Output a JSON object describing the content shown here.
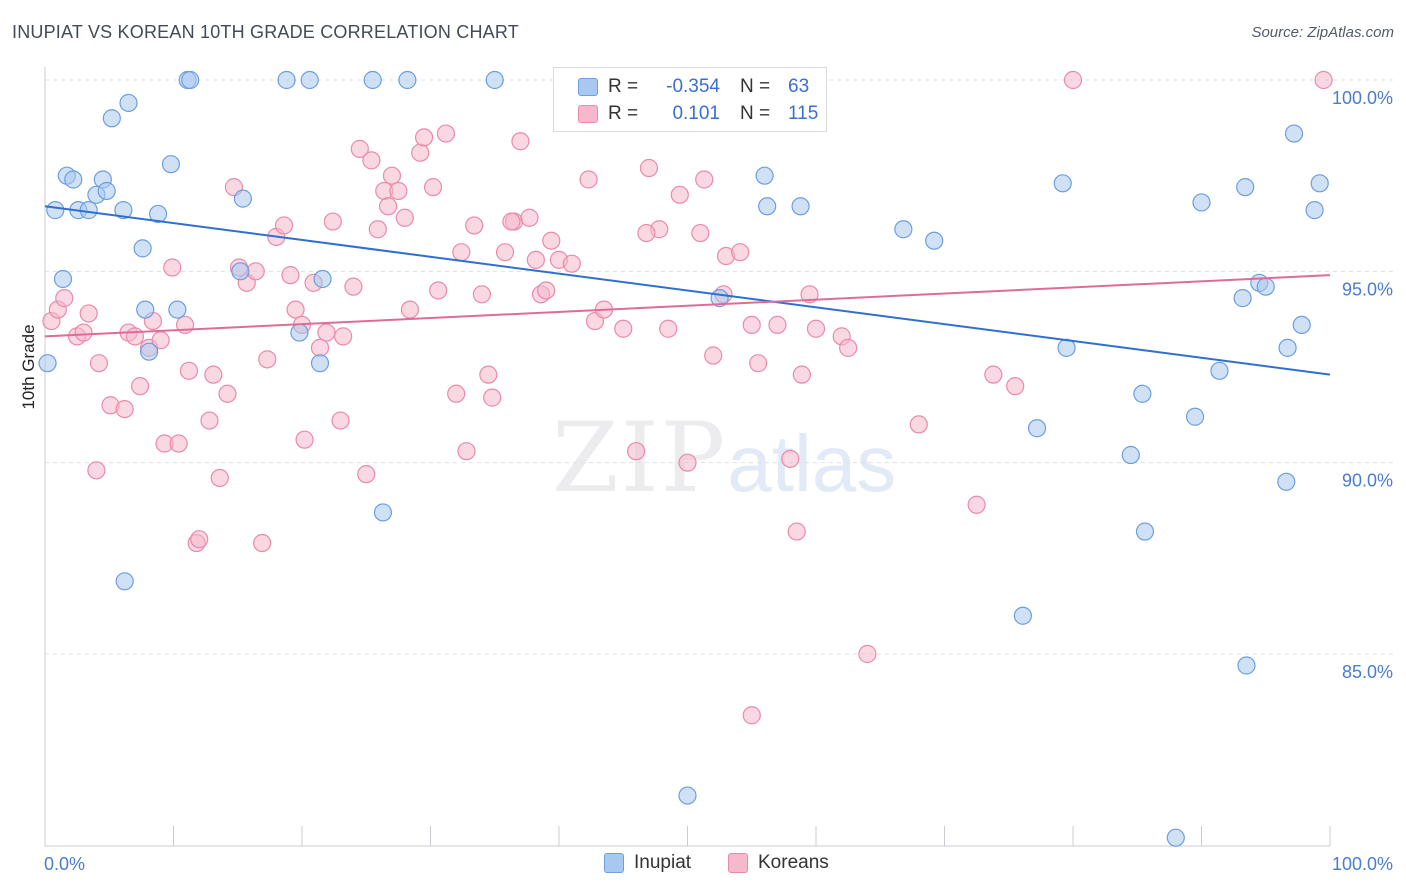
{
  "title": "INUPIAT VS KOREAN 10TH GRADE CORRELATION CHART",
  "source": "Source: ZipAtlas.com",
  "watermark": {
    "zip": "ZIP",
    "atlas": "atlas"
  },
  "legend": {
    "rows": [
      {
        "r_label": "R =",
        "r_value": "-0.354",
        "n_label": "N =",
        "n_value": "63"
      },
      {
        "r_label": "R =",
        "r_value": "0.101",
        "n_label": "N =",
        "n_value": "115"
      }
    ]
  },
  "bottom_legend": [
    "Inupiat",
    "Koreans"
  ],
  "colors": {
    "inupiat_fill": "#a9c8ef",
    "inupiat_stroke": "#6b9fe0",
    "inupiat_line": "#2f6fd0",
    "koreans_fill": "#f6b8cb",
    "koreans_stroke": "#ea8aaa",
    "koreans_line": "#e06b97",
    "tick_label": "#4a7ccf",
    "grid": "#dde0e5"
  },
  "chart_data": {
    "type": "scatter",
    "title": "INUPIAT VS KOREAN 10TH GRADE CORRELATION CHART",
    "xlabel": "",
    "ylabel": "10th Grade",
    "xlim": [
      0,
      100
    ],
    "ylim": [
      80.5,
      100.5
    ],
    "x_tick_labels": [
      "0.0%",
      "100.0%"
    ],
    "y_ticks": [
      85,
      90,
      95,
      100
    ],
    "y_tick_labels": [
      "85.0%",
      "90.0%",
      "95.0%",
      "100.0%"
    ],
    "grid": true,
    "legend_position": "top-center",
    "series": [
      {
        "name": "Inupiat",
        "r": -0.354,
        "n": 63,
        "trend": {
          "x": [
            0,
            100
          ],
          "y": [
            96.7,
            92.3
          ]
        },
        "points": [
          [
            0.8,
            96.6
          ],
          [
            1.4,
            94.8
          ],
          [
            1.7,
            97.5
          ],
          [
            2.2,
            97.4
          ],
          [
            2.6,
            96.6
          ],
          [
            3.4,
            96.6
          ],
          [
            4.0,
            97.0
          ],
          [
            4.5,
            97.4
          ],
          [
            4.8,
            97.1
          ],
          [
            5.2,
            99.0
          ],
          [
            6.1,
            96.6
          ],
          [
            6.5,
            99.4
          ],
          [
            7.6,
            95.6
          ],
          [
            7.8,
            94.0
          ],
          [
            8.1,
            92.9
          ],
          [
            8.8,
            96.5
          ],
          [
            9.8,
            97.8
          ],
          [
            10.3,
            94.0
          ],
          [
            11.1,
            100.0
          ],
          [
            11.3,
            100.0
          ],
          [
            15.4,
            96.9
          ],
          [
            18.8,
            100.0
          ],
          [
            20.6,
            100.0
          ],
          [
            25.5,
            100.0
          ],
          [
            28.2,
            100.0
          ],
          [
            35.0,
            100.0
          ],
          [
            42.0,
            100.0
          ],
          [
            15.2,
            95.0
          ],
          [
            19.8,
            93.4
          ],
          [
            21.4,
            92.6
          ],
          [
            21.6,
            94.8
          ],
          [
            26.3,
            88.7
          ],
          [
            6.2,
            86.9
          ],
          [
            52.5,
            94.3
          ],
          [
            56.0,
            97.5
          ],
          [
            56.2,
            96.7
          ],
          [
            58.8,
            96.7
          ],
          [
            66.8,
            96.1
          ],
          [
            69.2,
            95.8
          ],
          [
            76.1,
            86.0
          ],
          [
            77.2,
            90.9
          ],
          [
            79.2,
            97.3
          ],
          [
            79.5,
            93.0
          ],
          [
            84.5,
            90.2
          ],
          [
            85.4,
            91.8
          ],
          [
            85.6,
            88.2
          ],
          [
            89.5,
            91.2
          ],
          [
            90.0,
            96.8
          ],
          [
            91.4,
            92.4
          ],
          [
            93.2,
            94.3
          ],
          [
            93.4,
            97.2
          ],
          [
            93.5,
            84.7
          ],
          [
            94.5,
            94.7
          ],
          [
            95.0,
            94.6
          ],
          [
            96.6,
            89.5
          ],
          [
            96.7,
            93.0
          ],
          [
            97.2,
            98.6
          ],
          [
            97.8,
            93.6
          ],
          [
            98.8,
            96.6
          ],
          [
            99.2,
            97.3
          ],
          [
            50.0,
            81.3
          ],
          [
            88.0,
            80.2
          ],
          [
            0.2,
            92.6
          ]
        ]
      },
      {
        "name": "Koreans",
        "r": 0.101,
        "n": 115,
        "trend": {
          "x": [
            0,
            100
          ],
          "y": [
            93.3,
            94.9
          ]
        },
        "points": [
          [
            0.5,
            93.7
          ],
          [
            1.0,
            94.0
          ],
          [
            1.5,
            94.3
          ],
          [
            2.5,
            93.3
          ],
          [
            3.0,
            93.4
          ],
          [
            3.4,
            93.9
          ],
          [
            4.0,
            89.8
          ],
          [
            4.2,
            92.6
          ],
          [
            5.1,
            91.5
          ],
          [
            6.2,
            91.4
          ],
          [
            6.5,
            93.4
          ],
          [
            7.0,
            93.3
          ],
          [
            7.4,
            92.0
          ],
          [
            8.1,
            93.0
          ],
          [
            8.4,
            93.7
          ],
          [
            9.0,
            93.2
          ],
          [
            9.3,
            90.5
          ],
          [
            9.9,
            95.1
          ],
          [
            10.4,
            90.5
          ],
          [
            10.9,
            93.6
          ],
          [
            11.2,
            92.4
          ],
          [
            11.8,
            87.9
          ],
          [
            12.0,
            88.0
          ],
          [
            12.8,
            91.1
          ],
          [
            13.1,
            92.3
          ],
          [
            13.6,
            89.6
          ],
          [
            14.2,
            91.8
          ],
          [
            14.7,
            97.2
          ],
          [
            15.1,
            95.1
          ],
          [
            15.7,
            94.7
          ],
          [
            16.4,
            95.0
          ],
          [
            16.9,
            87.9
          ],
          [
            17.3,
            92.7
          ],
          [
            18.0,
            95.9
          ],
          [
            18.6,
            96.2
          ],
          [
            19.1,
            94.9
          ],
          [
            19.5,
            94.0
          ],
          [
            20.0,
            93.6
          ],
          [
            20.2,
            90.6
          ],
          [
            20.9,
            94.7
          ],
          [
            21.4,
            93.0
          ],
          [
            21.9,
            93.4
          ],
          [
            22.4,
            96.3
          ],
          [
            23.0,
            91.1
          ],
          [
            23.2,
            93.3
          ],
          [
            24.0,
            94.6
          ],
          [
            24.5,
            98.2
          ],
          [
            25.0,
            89.7
          ],
          [
            25.4,
            97.9
          ],
          [
            25.9,
            96.1
          ],
          [
            26.4,
            97.1
          ],
          [
            26.7,
            96.7
          ],
          [
            27.0,
            97.5
          ],
          [
            27.5,
            97.1
          ],
          [
            28.0,
            96.4
          ],
          [
            28.4,
            94.0
          ],
          [
            29.2,
            98.1
          ],
          [
            29.5,
            98.5
          ],
          [
            30.2,
            97.2
          ],
          [
            30.6,
            94.5
          ],
          [
            31.2,
            98.6
          ],
          [
            32.0,
            91.8
          ],
          [
            32.4,
            95.5
          ],
          [
            32.8,
            90.3
          ],
          [
            33.4,
            96.2
          ],
          [
            34.0,
            94.4
          ],
          [
            34.5,
            92.3
          ],
          [
            34.8,
            91.7
          ],
          [
            35.8,
            95.5
          ],
          [
            36.5,
            96.3
          ],
          [
            37.0,
            98.4
          ],
          [
            37.7,
            96.4
          ],
          [
            38.2,
            95.3
          ],
          [
            38.6,
            94.4
          ],
          [
            39.0,
            94.5
          ],
          [
            39.4,
            95.8
          ],
          [
            40.0,
            95.3
          ],
          [
            40.5,
            100.0
          ],
          [
            41.0,
            95.2
          ],
          [
            42.3,
            97.4
          ],
          [
            42.8,
            93.7
          ],
          [
            43.5,
            94.0
          ],
          [
            45.0,
            93.5
          ],
          [
            46.0,
            90.3
          ],
          [
            47.0,
            97.7
          ],
          [
            47.8,
            96.1
          ],
          [
            48.5,
            93.5
          ],
          [
            49.4,
            97.0
          ],
          [
            50.0,
            90.0
          ],
          [
            51.0,
            96.0
          ],
          [
            51.3,
            97.4
          ],
          [
            52.0,
            92.8
          ],
          [
            52.8,
            94.4
          ],
          [
            53.0,
            95.4
          ],
          [
            54.1,
            95.5
          ],
          [
            55.0,
            93.6
          ],
          [
            55.5,
            92.6
          ],
          [
            57.0,
            93.6
          ],
          [
            58.0,
            90.1
          ],
          [
            58.5,
            88.2
          ],
          [
            58.9,
            92.3
          ],
          [
            59.5,
            94.4
          ],
          [
            60.0,
            93.5
          ],
          [
            62.0,
            93.3
          ],
          [
            62.5,
            93.0
          ],
          [
            64.0,
            85.0
          ],
          [
            68.0,
            91.0
          ],
          [
            72.5,
            88.9
          ],
          [
            73.8,
            92.3
          ],
          [
            75.5,
            92.0
          ],
          [
            80.0,
            100.0
          ],
          [
            99.5,
            100.0
          ],
          [
            55.0,
            83.4
          ],
          [
            46.8,
            96.0
          ],
          [
            36.3,
            96.3
          ]
        ]
      }
    ]
  }
}
